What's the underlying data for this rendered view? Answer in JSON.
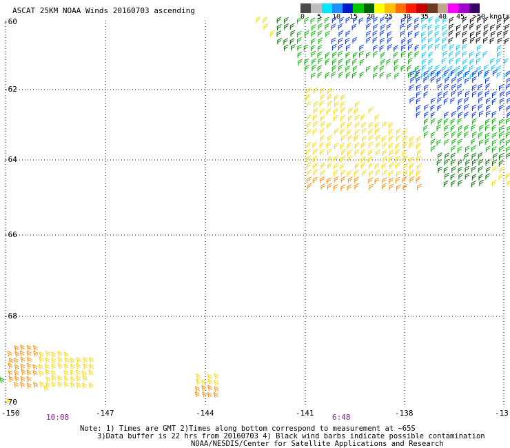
{
  "title": "ASCAT 25KM NOAA Winds 20160703 ascending",
  "colorbar": {
    "colors": [
      "#4a4a4a",
      "#bdbdbd",
      "#00e5ff",
      "#1e90ff",
      "#0018d0",
      "#00c800",
      "#006400",
      "#ffff00",
      "#ffc000",
      "#ff7000",
      "#ff1a00",
      "#c80000",
      "#6b3a1f",
      "#bfa58a",
      "#ff00ff",
      "#a000c8",
      "#3a006a"
    ],
    "labels": [
      "0",
      "5",
      "10",
      "15",
      "20",
      "25",
      "30",
      "35",
      "40",
      "45",
      ">50 knots"
    ]
  },
  "map": {
    "lat_labels": [
      "-60",
      "-62",
      "-64",
      "-66",
      "-68",
      "-70"
    ],
    "lon_labels": [
      "-150",
      "-147",
      "-144",
      "-141",
      "-138",
      "-13"
    ],
    "time_labels": [
      "10:08",
      "6:48"
    ]
  },
  "notes": [
    "Note: 1) Times are GMT 2)Times along bottom correspond to measurement at ~65S",
    "3)Data buffer is 22 hrs from 20160703 4) Black wind barbs indicate possible contamination",
    "NOAA/NESDIS/Center for Satellite Applications and Research"
  ],
  "colors": {
    "barb_yellow": "#ffd700",
    "barb_orange": "#ff8c00",
    "barb_green": "#00b400",
    "barb_darkgreen": "#007000",
    "barb_blue": "#0030ff",
    "barb_cyan": "#00c8ff",
    "barb_black": "#000000",
    "time_label": "#7a1f8c"
  }
}
